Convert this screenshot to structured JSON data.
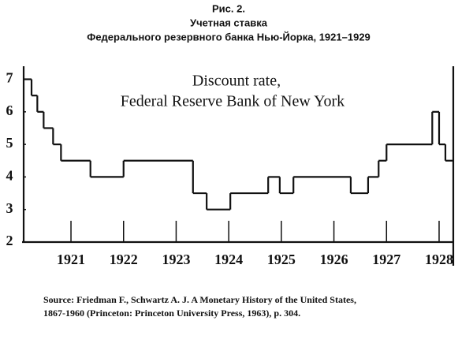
{
  "chart_data": {
    "type": "step",
    "title": "Рис. 2.",
    "subtitle": [
      "Учетная ставка",
      "Федерального резервного банка Нью-Йорка, 1921–1929"
    ],
    "annotations": [
      "Discount rate,",
      "Federal Reserve Bank of New York"
    ],
    "source": [
      "Source: Friedman F., Schwartz A. J. A Monetary History of the United States,",
      "1867-1960 (Princeton: Princeton University Press, 1963), p. 304."
    ],
    "x": [
      1920.1,
      1920.25,
      1920.36,
      1920.48,
      1920.66,
      1920.81,
      1921.37,
      1922.0,
      1923.32,
      1923.58,
      1924.03,
      1924.75,
      1924.97,
      1925.23,
      1926.32,
      1926.65,
      1926.85,
      1927.0,
      1927.87,
      1928.0,
      1928.12
    ],
    "values": [
      7,
      6.5,
      6,
      5.5,
      5,
      4.5,
      4,
      4.5,
      3.5,
      3,
      3.5,
      4,
      3.5,
      4,
      3.5,
      4,
      4.5,
      5,
      6,
      5,
      4.5
    ],
    "color": "#111111",
    "xlim": [
      1920.1,
      1928.27
    ],
    "xticks": [
      1921,
      1922,
      1923,
      1924,
      1925,
      1926,
      1927,
      1928
    ],
    "ylim": [
      2,
      7.4
    ],
    "yticks": [
      2,
      3,
      4,
      5,
      6,
      7
    ],
    "grid": false
  }
}
